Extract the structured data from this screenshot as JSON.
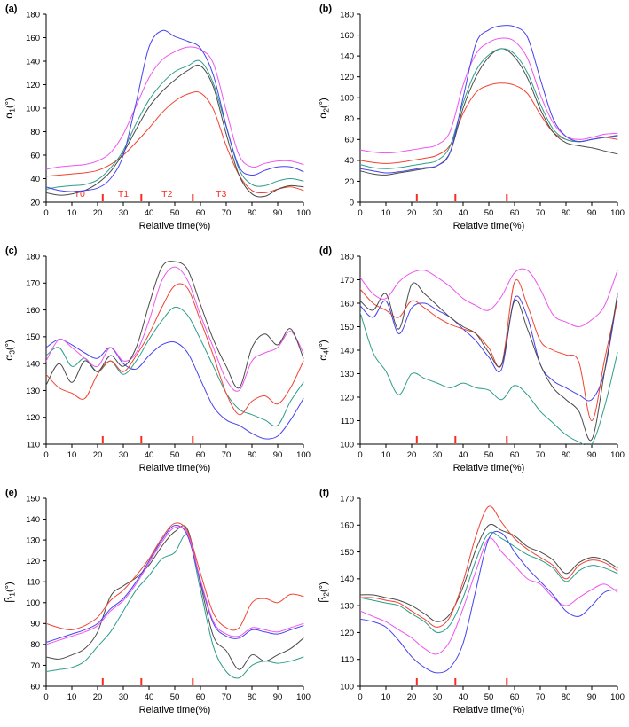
{
  "figure": {
    "x_label": "Relative time(%)",
    "axis_color": "#000000",
    "event_tick_color": "#fb2b1f",
    "phase_label_color": "#fb2b1f"
  },
  "chart_data": [
    {
      "type": "line",
      "id": "a",
      "panel_label": "(a)",
      "ylabel": {
        "sym": "α",
        "sub": "1",
        "unit": "(°)"
      },
      "xlabel": "Relative time(%)",
      "xlim": [
        0,
        100
      ],
      "xtick": 10,
      "ylim": [
        20,
        180
      ],
      "ytick": 20,
      "x": [
        0,
        5,
        10,
        15,
        20,
        25,
        30,
        35,
        40,
        45,
        50,
        55,
        60,
        65,
        70,
        75,
        80,
        85,
        90,
        95,
        100
      ],
      "event_ticks": [
        22,
        37,
        57
      ],
      "phase_labels": [
        {
          "text": "T0",
          "x": 13
        },
        {
          "text": "T1",
          "x": 30
        },
        {
          "text": "T2",
          "x": 47
        },
        {
          "text": "T3",
          "x": 68
        }
      ],
      "series": [
        {
          "name": "red",
          "color": "#f04433",
          "values": [
            42,
            43,
            44,
            45,
            47,
            52,
            60,
            71,
            83,
            96,
            106,
            112,
            113,
            99,
            68,
            43,
            30,
            28,
            31,
            33,
            30
          ]
        },
        {
          "name": "black",
          "color": "#4a4a4a",
          "values": [
            28,
            26,
            27,
            30,
            36,
            46,
            62,
            82,
            101,
            114,
            124,
            132,
            136,
            118,
            78,
            43,
            27,
            25,
            31,
            34,
            33
          ]
        },
        {
          "name": "teal",
          "color": "#2d9d8a",
          "values": [
            31,
            33,
            34,
            35,
            39,
            49,
            64,
            87,
            107,
            121,
            131,
            136,
            140,
            121,
            84,
            48,
            35,
            34,
            38,
            40,
            38
          ]
        },
        {
          "name": "magenta",
          "color": "#ee55ee",
          "values": [
            48,
            50,
            51,
            52,
            55,
            62,
            78,
            102,
            126,
            141,
            148,
            152,
            150,
            138,
            98,
            60,
            50,
            53,
            55,
            55,
            52
          ]
        },
        {
          "name": "blue",
          "color": "#4742ee",
          "values": [
            33,
            30,
            29,
            30,
            32,
            40,
            60,
            105,
            152,
            166,
            161,
            157,
            151,
            128,
            85,
            50,
            43,
            47,
            50,
            50,
            46
          ]
        }
      ]
    },
    {
      "type": "line",
      "id": "b",
      "panel_label": "(b)",
      "ylabel": {
        "sym": "α",
        "sub": "2",
        "unit": "(°)"
      },
      "xlabel": "Relative time(%)",
      "xlim": [
        0,
        100
      ],
      "xtick": 10,
      "ylim": [
        0,
        180
      ],
      "ytick": 20,
      "x": [
        0,
        5,
        10,
        15,
        20,
        25,
        30,
        35,
        40,
        45,
        50,
        55,
        60,
        65,
        70,
        75,
        80,
        85,
        90,
        95,
        100
      ],
      "event_ticks": [
        22,
        37,
        57
      ],
      "phase_labels": [],
      "series": [
        {
          "name": "red",
          "color": "#f04433",
          "values": [
            40,
            38,
            37,
            38,
            40,
            42,
            45,
            55,
            85,
            105,
            112,
            114,
            112,
            104,
            84,
            67,
            60,
            58,
            60,
            62,
            60
          ]
        },
        {
          "name": "black",
          "color": "#4a4a4a",
          "values": [
            30,
            27,
            26,
            28,
            30,
            32,
            35,
            48,
            90,
            120,
            139,
            147,
            139,
            119,
            89,
            67,
            57,
            54,
            52,
            49,
            46
          ]
        },
        {
          "name": "teal",
          "color": "#2d9d8a",
          "values": [
            36,
            33,
            32,
            33,
            35,
            37,
            40,
            54,
            95,
            126,
            141,
            147,
            142,
            124,
            94,
            70,
            60,
            58,
            60,
            62,
            63
          ]
        },
        {
          "name": "magenta",
          "color": "#ee55ee",
          "values": [
            50,
            48,
            47,
            48,
            50,
            52,
            55,
            68,
            112,
            142,
            153,
            157,
            154,
            138,
            103,
            76,
            63,
            60,
            62,
            65,
            66
          ]
        },
        {
          "name": "blue",
          "color": "#4742ee",
          "values": [
            32,
            30,
            28,
            29,
            31,
            33,
            35,
            48,
            100,
            152,
            165,
            169,
            168,
            158,
            118,
            80,
            63,
            58,
            60,
            62,
            64
          ]
        }
      ]
    },
    {
      "type": "line",
      "id": "c",
      "panel_label": "(c)",
      "ylabel": {
        "sym": "α",
        "sub": "3",
        "unit": "(°)"
      },
      "xlabel": "Relative time(%)",
      "xlim": [
        0,
        100
      ],
      "xtick": 10,
      "ylim": [
        110,
        180
      ],
      "ytick": 10,
      "x": [
        0,
        5,
        10,
        15,
        20,
        25,
        30,
        35,
        40,
        45,
        50,
        55,
        60,
        65,
        70,
        75,
        80,
        85,
        90,
        95,
        100
      ],
      "event_ticks": [
        22,
        37,
        57
      ],
      "phase_labels": [],
      "series": [
        {
          "name": "blue",
          "color": "#4742ee",
          "values": [
            146,
            149,
            147,
            144,
            142,
            146,
            140,
            138,
            143,
            147,
            148,
            144,
            134,
            124,
            119,
            117,
            114,
            112,
            113,
            119,
            127
          ]
        },
        {
          "name": "teal",
          "color": "#2d9d8a",
          "values": [
            143,
            146,
            139,
            142,
            137,
            141,
            136,
            141,
            149,
            156,
            161,
            158,
            149,
            139,
            129,
            123,
            121,
            119,
            117,
            126,
            133
          ]
        },
        {
          "name": "red",
          "color": "#f04433",
          "values": [
            136,
            131,
            129,
            127,
            136,
            141,
            137,
            143,
            151,
            161,
            169,
            168,
            156,
            143,
            129,
            121,
            126,
            128,
            125,
            131,
            141
          ]
        },
        {
          "name": "magenta",
          "color": "#ee55ee",
          "values": [
            141,
            149,
            146,
            142,
            139,
            146,
            141,
            144,
            156,
            171,
            176,
            171,
            158,
            146,
            134,
            130,
            141,
            144,
            146,
            152,
            144
          ]
        },
        {
          "name": "black",
          "color": "#4a4a4a",
          "values": [
            132,
            140,
            133,
            141,
            137,
            143,
            139,
            146,
            162,
            176,
            178,
            175,
            162,
            149,
            139,
            131,
            146,
            151,
            147,
            153,
            142
          ]
        }
      ]
    },
    {
      "type": "line",
      "id": "d",
      "panel_label": "(d)",
      "ylabel": {
        "sym": "α",
        "sub": "4",
        "unit": "(°)"
      },
      "xlabel": "Relative time(%)",
      "xlim": [
        0,
        100
      ],
      "xtick": 10,
      "ylim": [
        100,
        180
      ],
      "ytick": 10,
      "x": [
        0,
        5,
        10,
        15,
        20,
        25,
        30,
        35,
        40,
        45,
        50,
        55,
        60,
        65,
        70,
        75,
        80,
        85,
        90,
        95,
        100
      ],
      "event_ticks": [
        22,
        37,
        57
      ],
      "phase_labels": [],
      "series": [
        {
          "name": "teal",
          "color": "#2d9d8a",
          "values": [
            156,
            139,
            131,
            121,
            130,
            128,
            126,
            124,
            126,
            124,
            123,
            119,
            125,
            121,
            114,
            109,
            104,
            101,
            100,
            116,
            139
          ]
        },
        {
          "name": "blue",
          "color": "#4742ee",
          "values": [
            159,
            154,
            161,
            147,
            158,
            160,
            157,
            154,
            149,
            144,
            137,
            132,
            162,
            154,
            134,
            127,
            124,
            121,
            119,
            131,
            163
          ]
        },
        {
          "name": "red",
          "color": "#f04433",
          "values": [
            166,
            160,
            157,
            154,
            161,
            158,
            154,
            151,
            149,
            147,
            141,
            134,
            169,
            159,
            144,
            140,
            138,
            135,
            110,
            136,
            161
          ]
        },
        {
          "name": "black",
          "color": "#4a4a4a",
          "values": [
            161,
            157,
            164,
            149,
            168,
            164,
            159,
            154,
            150,
            147,
            139,
            134,
            161,
            149,
            134,
            124,
            119,
            114,
            102,
            131,
            164
          ]
        },
        {
          "name": "magenta",
          "color": "#ee55ee",
          "values": [
            171,
            164,
            162,
            169,
            173,
            174,
            171,
            167,
            162,
            159,
            157,
            163,
            173,
            174,
            166,
            155,
            152,
            150,
            153,
            159,
            174
          ]
        }
      ]
    },
    {
      "type": "line",
      "id": "e",
      "panel_label": "(e)",
      "ylabel": {
        "sym": "β",
        "sub": "1",
        "unit": "(°)"
      },
      "xlabel": "Relative time(%)",
      "xlim": [
        0,
        100
      ],
      "xtick": 10,
      "ylim": [
        60,
        150
      ],
      "ytick": 10,
      "x": [
        0,
        5,
        10,
        15,
        20,
        25,
        30,
        35,
        40,
        45,
        50,
        55,
        60,
        65,
        70,
        75,
        80,
        85,
        90,
        95,
        100
      ],
      "event_ticks": [
        22,
        37,
        57
      ],
      "phase_labels": [],
      "series": [
        {
          "name": "teal",
          "color": "#2d9d8a",
          "values": [
            67,
            68,
            69,
            72,
            79,
            86,
            96,
            106,
            113,
            121,
            124,
            132,
            106,
            79,
            67,
            64,
            70,
            72,
            71,
            72,
            74
          ]
        },
        {
          "name": "black",
          "color": "#4a4a4a",
          "values": [
            74,
            73,
            75,
            78,
            86,
            103,
            108,
            112,
            118,
            127,
            134,
            135,
            109,
            84,
            77,
            68,
            75,
            72,
            75,
            78,
            83
          ]
        },
        {
          "name": "blue",
          "color": "#4742ee",
          "values": [
            81,
            83,
            85,
            87,
            90,
            97,
            102,
            110,
            120,
            130,
            137,
            132,
            110,
            90,
            84,
            83,
            87,
            86,
            85,
            87,
            89
          ]
        },
        {
          "name": "magenta",
          "color": "#ee55ee",
          "values": [
            80,
            82,
            84,
            86,
            89,
            96,
            101,
            109,
            119,
            129,
            136,
            133,
            111,
            91,
            85,
            84,
            88,
            87,
            86,
            88,
            90
          ]
        },
        {
          "name": "red",
          "color": "#f04433",
          "values": [
            90,
            88,
            87,
            89,
            93,
            101,
            106,
            113,
            121,
            131,
            138,
            134,
            114,
            95,
            88,
            88,
            100,
            102,
            100,
            104,
            103
          ]
        }
      ]
    },
    {
      "type": "line",
      "id": "f",
      "panel_label": "(f)",
      "ylabel": {
        "sym": "β",
        "sub": "2",
        "unit": "(°)"
      },
      "xlabel": "Relative time(%)",
      "xlim": [
        0,
        100
      ],
      "xtick": 10,
      "ylim": [
        100,
        170
      ],
      "ytick": 10,
      "x": [
        0,
        5,
        10,
        15,
        20,
        25,
        30,
        35,
        40,
        45,
        50,
        55,
        60,
        65,
        70,
        75,
        80,
        85,
        90,
        95,
        100
      ],
      "event_ticks": [
        22,
        37,
        57
      ],
      "phase_labels": [],
      "series": [
        {
          "name": "magenta",
          "color": "#ee55ee",
          "values": [
            128,
            126,
            124,
            121,
            118,
            114,
            112,
            117,
            129,
            143,
            155,
            150,
            145,
            140,
            138,
            133,
            130,
            133,
            136,
            138,
            135
          ]
        },
        {
          "name": "blue",
          "color": "#4742ee",
          "values": [
            125,
            124,
            122,
            117,
            111,
            107,
            105,
            107,
            116,
            136,
            155,
            157,
            150,
            144,
            139,
            134,
            128,
            126,
            130,
            135,
            136
          ]
        },
        {
          "name": "teal",
          "color": "#2d9d8a",
          "values": [
            133,
            132,
            131,
            130,
            127,
            124,
            120,
            123,
            133,
            147,
            157,
            155,
            152,
            149,
            147,
            144,
            139,
            143,
            145,
            144,
            142
          ]
        },
        {
          "name": "black",
          "color": "#4a4a4a",
          "values": [
            134,
            134,
            133,
            132,
            130,
            127,
            124,
            127,
            137,
            151,
            160,
            158,
            156,
            152,
            150,
            147,
            142,
            146,
            148,
            147,
            144
          ]
        },
        {
          "name": "red",
          "color": "#f04433",
          "values": [
            133,
            133,
            132,
            131,
            128,
            125,
            122,
            126,
            139,
            156,
            167,
            161,
            155,
            151,
            148,
            145,
            140,
            145,
            147,
            146,
            143
          ]
        }
      ]
    }
  ]
}
